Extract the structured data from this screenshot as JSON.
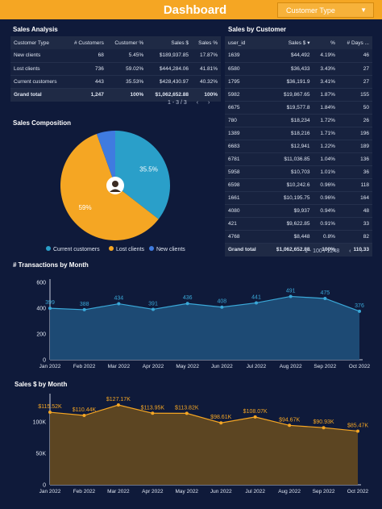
{
  "header": {
    "title": "Dashboard",
    "filter_label": "Customer Type",
    "filter_icon": "chevron-down-icon"
  },
  "sales_analysis": {
    "title": "Sales Analysis",
    "columns": [
      "Customer Type",
      "# Customers",
      "Customer %",
      "Sales $",
      "Sales %"
    ],
    "rows": [
      [
        "New clients",
        "68",
        "5.45%",
        "$189,937.85",
        "17.87%"
      ],
      [
        "Lost clients",
        "736",
        "59.02%",
        "$444,284.06",
        "41.81%"
      ],
      [
        "Current customers",
        "443",
        "35.53%",
        "$428,430.97",
        "40.32%"
      ]
    ],
    "total": [
      "Grand total",
      "1,247",
      "100%",
      "$1,062,652.88",
      "100%"
    ],
    "pager": "1 - 3 / 3"
  },
  "sales_by_customer": {
    "title": "Sales by Customer",
    "columns": [
      "user_id",
      "Sales $",
      "%",
      "# Days ..."
    ],
    "sort_icon": "sort-desc-icon",
    "rows": [
      [
        "1639",
        "$44,492",
        "4.19%",
        "46"
      ],
      [
        "6580",
        "$36,433",
        "3.43%",
        "27"
      ],
      [
        "1795",
        "$36,191.9",
        "3.41%",
        "27"
      ],
      [
        "5982",
        "$19,867.65",
        "1.87%",
        "155"
      ],
      [
        "6675",
        "$19,577.8",
        "1.84%",
        "50"
      ],
      [
        "780",
        "$18,234",
        "1.72%",
        "26"
      ],
      [
        "1389",
        "$18,216",
        "1.71%",
        "196"
      ],
      [
        "6683",
        "$12,941",
        "1.22%",
        "189"
      ],
      [
        "6781",
        "$11,036.85",
        "1.04%",
        "136"
      ],
      [
        "5958",
        "$10,703",
        "1.01%",
        "36"
      ],
      [
        "6598",
        "$10,242.6",
        "0.96%",
        "118"
      ],
      [
        "1661",
        "$10,195.75",
        "0.96%",
        "164"
      ],
      [
        "4080",
        "$9,937",
        "0.94%",
        "48"
      ],
      [
        "421",
        "$9,622.85",
        "0.91%",
        "33"
      ],
      [
        "4768",
        "$8,448",
        "0.8%",
        "82"
      ]
    ],
    "total": [
      "Grand total",
      "$1,062,652.88",
      "100%",
      "110.33"
    ],
    "pager": "1 - 100 / 1248"
  },
  "composition": {
    "title": "Sales Composition",
    "avatar_icon": "user-avatar-icon"
  },
  "chart_data": [
    {
      "type": "pie",
      "title": "Sales Composition",
      "labels": [
        "Current customers",
        "Lost clients",
        "New clients"
      ],
      "values": [
        35.5,
        59,
        5.5
      ],
      "data_labels": [
        "35.5%",
        "59%",
        ""
      ],
      "colors": [
        "#2a9fc9",
        "#f5a623",
        "#3f7be0"
      ],
      "legend": "bottom"
    },
    {
      "type": "area",
      "title": "# Transactions by Month",
      "x": [
        "Jan 2022",
        "Feb 2022",
        "Mar 2022",
        "Apr 2022",
        "May 2022",
        "Jun 2022",
        "Jul 2022",
        "Aug 2022",
        "Sep 2022",
        "Oct 2022"
      ],
      "values": [
        399,
        388,
        434,
        391,
        436,
        408,
        441,
        491,
        475,
        376
      ],
      "data_labels": [
        "399",
        "388",
        "434",
        "391",
        "436",
        "408",
        "441",
        "491",
        "475",
        "376"
      ],
      "ylim": [
        0,
        600
      ],
      "yticks": [
        "0",
        "200",
        "400",
        "600"
      ],
      "ytick_values": [
        0,
        200,
        400,
        600
      ],
      "color": "#3aa8d8",
      "grid": false
    },
    {
      "type": "area",
      "title": "Sales $ by Month",
      "x": [
        "Jan 2022",
        "Feb 2022",
        "Mar 2022",
        "Apr 2022",
        "May 2022",
        "Jun 2022",
        "Jul 2022",
        "Aug 2022",
        "Sep 2022",
        "Oct 2022"
      ],
      "values": [
        115520,
        110440,
        127170,
        113950,
        113820,
        98610,
        108070,
        94670,
        90930,
        85470
      ],
      "data_labels": [
        "$115.52K",
        "$110.44K",
        "$127.17K",
        "$113.95K",
        "$113.82K",
        "$98.61K",
        "$108.07K",
        "$94.67K",
        "$90.93K",
        "$85.47K"
      ],
      "ylim": [
        0,
        140000
      ],
      "yticks": [
        "0",
        "50K",
        "100K"
      ],
      "ytick_values": [
        0,
        50000,
        100000
      ],
      "color": "#f5a623",
      "grid": false
    }
  ]
}
